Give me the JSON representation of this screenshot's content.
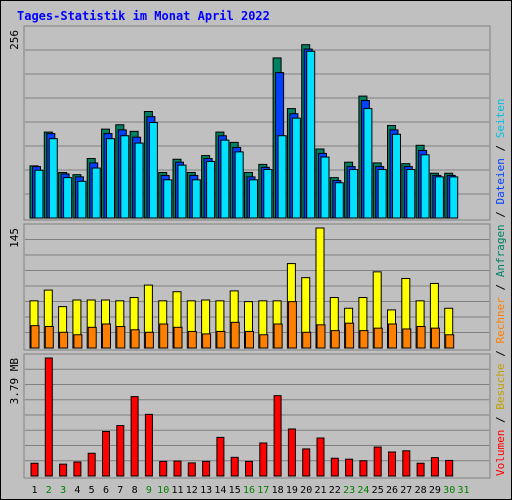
{
  "title": "Tages-Statistik im Monat April 2022",
  "chart_data": {
    "type": "bar",
    "categories": [
      "1",
      "2",
      "3",
      "4",
      "5",
      "6",
      "7",
      "8",
      "9",
      "10",
      "11",
      "12",
      "13",
      "14",
      "15",
      "16",
      "17",
      "18",
      "19",
      "20",
      "21",
      "22",
      "23",
      "24",
      "25",
      "26",
      "27",
      "28",
      "29",
      "30",
      "31"
    ],
    "weekend_days": [
      "2",
      "3",
      "9",
      "10",
      "16",
      "17",
      "23",
      "24",
      "30",
      "31"
    ],
    "panels": [
      {
        "id": "top",
        "scale_label": "256",
        "ylim": [
          0,
          256
        ],
        "series": [
          {
            "name": "Anfragen",
            "color": "#008060",
            "values": [
              71,
              117,
              62,
              59,
              81,
              121,
              127,
              118,
              145,
              62,
              80,
              62,
              85,
              117,
              103,
              62,
              73,
              218,
              149,
              236,
              94,
              55,
              76,
              166,
              75,
              126,
              74,
              99,
              61,
              61,
              0
            ]
          },
          {
            "name": "Dateien",
            "color": "#0040ff",
            "values": [
              70,
              115,
              60,
              56,
              75,
              115,
              120,
              110,
              138,
              58,
              76,
              58,
              81,
              112,
              96,
              56,
              69,
              198,
              142,
              230,
              88,
              51,
              70,
              160,
              70,
              120,
              70,
              92,
              58,
              58,
              0
            ]
          },
          {
            "name": "Seiten",
            "color": "#00e0ff",
            "values": [
              65,
              108,
              55,
              50,
              68,
              108,
              112,
              102,
              130,
              52,
              72,
              52,
              77,
              106,
              90,
              52,
              66,
              112,
              136,
              227,
              83,
              48,
              66,
              149,
              66,
              114,
              66,
              86,
              56,
              56,
              0
            ]
          }
        ],
        "legend": [
          "Anfragen",
          "Dateien",
          "Seiten"
        ]
      },
      {
        "id": "middle",
        "scale_label": "145",
        "ylim": [
          0,
          145
        ],
        "series": [
          {
            "name": "Besuche",
            "color": "#ffff00",
            "values": [
              57,
              70,
              50,
              58,
              58,
              58,
              57,
              61,
              76,
              57,
              68,
              57,
              58,
              57,
              69,
              56,
              57,
              57,
              102,
              85,
              145,
              61,
              48,
              61,
              92,
              46,
              84,
              57,
              78,
              48,
              0
            ]
          },
          {
            "name": "Rechner",
            "color": "#ff8000",
            "values": [
              27,
              26,
              19,
              16,
              25,
              29,
              26,
              22,
              19,
              29,
              25,
              20,
              17,
              20,
              31,
              20,
              16,
              29,
              56,
              19,
              28,
              21,
              30,
              21,
              24,
              29,
              23,
              26,
              24,
              16,
              0
            ]
          }
        ],
        "legend": [
          "Besuche",
          "Rechner"
        ]
      },
      {
        "id": "bottom",
        "scale_label": "3.79 MB",
        "ylim": [
          0,
          3.79
        ],
        "series": [
          {
            "name": "Volumen",
            "color": "#ff0000",
            "values": [
              0.41,
              3.79,
              0.38,
              0.45,
              0.73,
              1.43,
              1.62,
              2.55,
              1.98,
              0.47,
              0.48,
              0.42,
              0.47,
              1.24,
              0.6,
              0.47,
              1.06,
              2.58,
              1.51,
              0.87,
              1.22,
              0.57,
              0.54,
              0.49,
              0.93,
              0.77,
              0.81,
              0.41,
              0.59,
              0.5,
              0
            ]
          }
        ],
        "legend": [
          "Volumen"
        ]
      }
    ],
    "legend_separator": " / ",
    "legend_placement": "right-vertical",
    "grid": true
  }
}
